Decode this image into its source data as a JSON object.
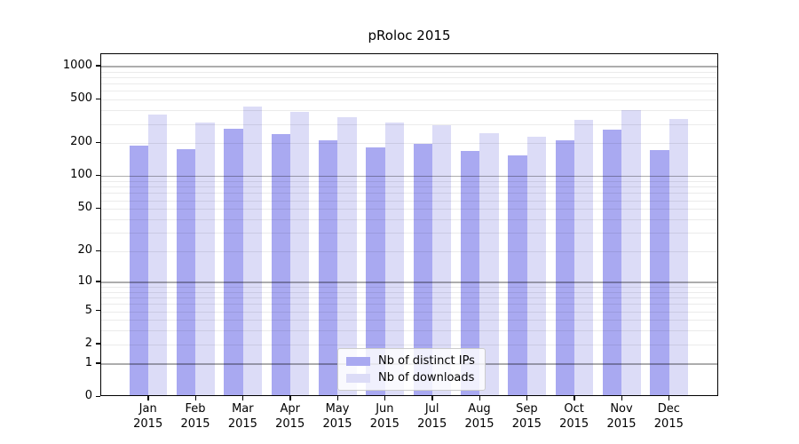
{
  "figure": {
    "background": "#ffffff",
    "axis_color": "#000000"
  },
  "chart_data": {
    "type": "bar",
    "title": "pRoloc 2015",
    "categories": [
      "Jan",
      "Feb",
      "Mar",
      "Apr",
      "May",
      "Jun",
      "Jul",
      "Aug",
      "Sep",
      "Oct",
      "Nov",
      "Dec"
    ],
    "x_year": "2015",
    "series": [
      {
        "name": "Nb of distinct IPs",
        "color": "#a9a9f1",
        "values": [
          182,
          169,
          262,
          236,
          205,
          178,
          192,
          163,
          150,
          205,
          255,
          167
        ]
      },
      {
        "name": "Nb of downloads",
        "color": "#dcdcf7",
        "values": [
          352,
          297,
          418,
          376,
          331,
          300,
          283,
          240,
          220,
          317,
          387,
          321
        ]
      }
    ],
    "yscale": "log1p",
    "y_ticks": [
      0,
      1,
      2,
      5,
      10,
      20,
      50,
      100,
      200,
      500,
      1000
    ],
    "ylim": [
      0,
      1300
    ],
    "grid": {
      "orientation": "horizontal",
      "major_color": "rgba(0,0,0,0.32)",
      "minor_color": "rgba(0,0,0,0.08)",
      "drawn_above_bars": true
    },
    "legend_position": "lower center"
  }
}
